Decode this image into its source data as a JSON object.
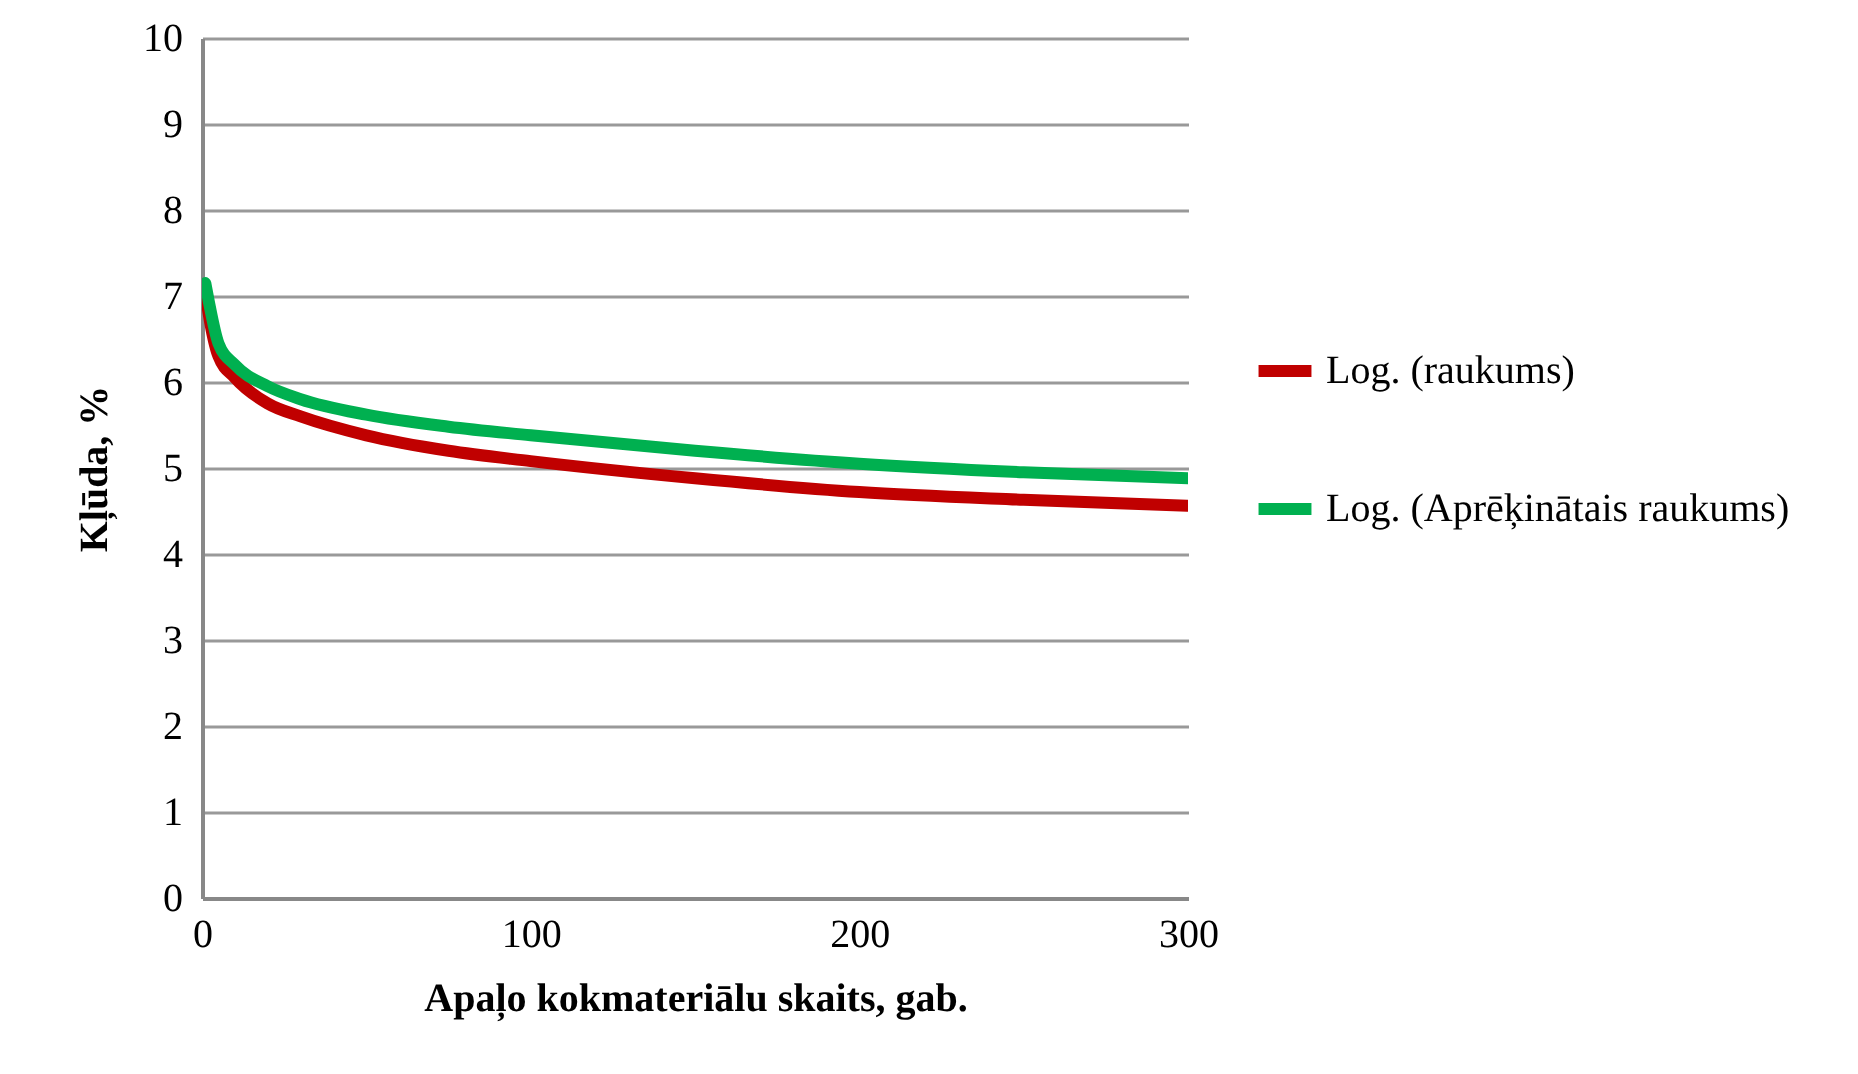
{
  "chart_data": {
    "type": "line",
    "xlabel": "Apaļo kokmateriālu skaits, gab.",
    "ylabel": "Kļūda, %",
    "x": [
      1,
      2,
      5,
      10,
      20,
      30,
      50,
      75,
      100,
      150,
      200,
      250,
      300
    ],
    "series": [
      {
        "name": "Log. (raukums)",
        "color": "#c00000",
        "values": [
          7.05,
          6.8,
          6.3,
          6.05,
          5.75,
          5.6,
          5.38,
          5.2,
          5.08,
          4.88,
          4.72,
          4.63,
          4.56
        ]
      },
      {
        "name": "Log. (Aprēķinātais raukums)",
        "color": "#00b050",
        "values": [
          7.15,
          6.95,
          6.45,
          6.2,
          5.95,
          5.8,
          5.62,
          5.48,
          5.38,
          5.2,
          5.05,
          4.95,
          4.88
        ]
      }
    ],
    "xlim": [
      0,
      300
    ],
    "xticks": [
      0,
      100,
      200,
      300
    ],
    "ylim": [
      0,
      10
    ],
    "yticks": [
      0,
      1,
      2,
      3,
      4,
      5,
      6,
      7,
      8,
      9,
      10
    ],
    "grid": "y",
    "legend": "right"
  }
}
